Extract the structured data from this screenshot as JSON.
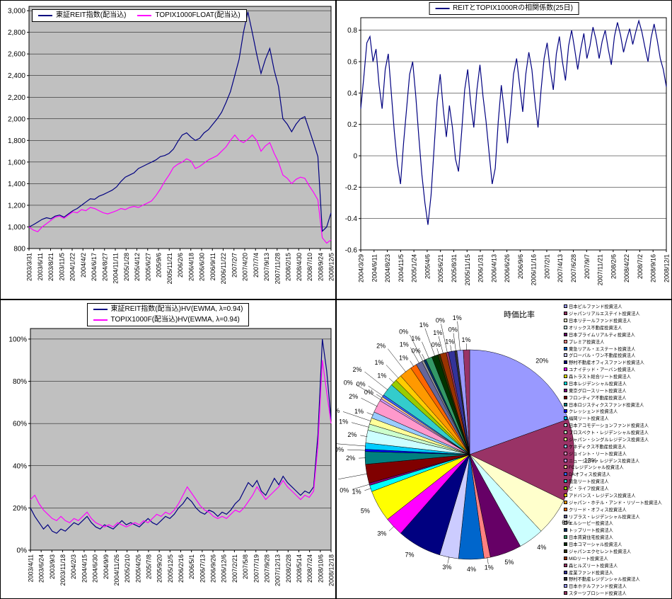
{
  "chart_data": [
    {
      "id": "price_index",
      "type": "line",
      "plot_bg": "#C0C0C0",
      "ylim": [
        800,
        3040
      ],
      "yticks": [
        {
          "v": 800,
          "label": "800"
        },
        {
          "v": 1000,
          "label": "1,000"
        },
        {
          "v": 1200,
          "label": "1,200"
        },
        {
          "v": 1400,
          "label": "1,400"
        },
        {
          "v": 1600,
          "label": "1,600"
        },
        {
          "v": 1800,
          "label": "1,800"
        },
        {
          "v": 2000,
          "label": "2,000"
        },
        {
          "v": 2200,
          "label": "2,200"
        },
        {
          "v": 2400,
          "label": "2,400"
        },
        {
          "v": 2600,
          "label": "2,600"
        },
        {
          "v": 2800,
          "label": "2,800"
        },
        {
          "v": 3000,
          "label": "3,000"
        }
      ],
      "x_labels": [
        "2003/3/31",
        "2003/6/11",
        "2003/8/21",
        "2003/11/5",
        "2004/1/22",
        "2004/4/2",
        "2004/6/17",
        "2004/8/27",
        "2004/11/11",
        "2005/1/28",
        "2005/4/12",
        "2005/6/27",
        "2005/9/6",
        "2005/11/21",
        "2006/2/6",
        "2006/4/18",
        "2006/6/30",
        "2006/9/11",
        "2006/11/22",
        "2007/2/7",
        "2007/4/20",
        "2007/7/4",
        "2007/9/13",
        "2007/11/28",
        "2008/2/15",
        "2008/4/30",
        "2008/7/10",
        "2008/9/24",
        "2008/12/5"
      ],
      "series": [
        {
          "name": "東証REIT指数(配当込)",
          "color": "#000080",
          "values": [
            1000,
            1020,
            1045,
            1070,
            1085,
            1075,
            1100,
            1110,
            1090,
            1120,
            1150,
            1170,
            1200,
            1230,
            1260,
            1255,
            1285,
            1300,
            1320,
            1340,
            1370,
            1420,
            1460,
            1480,
            1500,
            1540,
            1560,
            1580,
            1600,
            1620,
            1650,
            1660,
            1680,
            1720,
            1790,
            1850,
            1870,
            1830,
            1800,
            1820,
            1870,
            1900,
            1950,
            2000,
            2060,
            2150,
            2250,
            2400,
            2550,
            2800,
            2990,
            2800,
            2600,
            2420,
            2550,
            2650,
            2450,
            2300,
            2000,
            1950,
            1880,
            1950,
            2000,
            2020,
            1900,
            1780,
            1650,
            960,
            1000,
            1130
          ]
        },
        {
          "name": "TOPIX1000FLOAT(配当込)",
          "color": "#FF00FF",
          "values": [
            1000,
            970,
            955,
            1000,
            1030,
            1060,
            1090,
            1100,
            1080,
            1110,
            1140,
            1130,
            1160,
            1150,
            1180,
            1170,
            1150,
            1130,
            1120,
            1135,
            1150,
            1170,
            1160,
            1180,
            1190,
            1180,
            1200,
            1220,
            1240,
            1290,
            1350,
            1420,
            1480,
            1550,
            1580,
            1600,
            1630,
            1610,
            1540,
            1560,
            1590,
            1620,
            1640,
            1660,
            1700,
            1740,
            1800,
            1850,
            1800,
            1780,
            1810,
            1850,
            1800,
            1700,
            1750,
            1780,
            1680,
            1600,
            1480,
            1450,
            1400,
            1440,
            1460,
            1450,
            1380,
            1320,
            1250,
            900,
            850,
            880
          ]
        }
      ]
    },
    {
      "id": "correlation",
      "type": "line",
      "plot_bg": "#FFFFFF",
      "ylim": [
        -0.6,
        0.88
      ],
      "yticks": [
        {
          "v": -0.6,
          "label": "-0.6"
        },
        {
          "v": -0.4,
          "label": "-0.4"
        },
        {
          "v": -0.2,
          "label": "-0.2"
        },
        {
          "v": 0,
          "label": "0"
        },
        {
          "v": 0.2,
          "label": "0.2"
        },
        {
          "v": 0.4,
          "label": "0.4"
        },
        {
          "v": 0.6,
          "label": "0.6"
        },
        {
          "v": 0.8,
          "label": "0.8"
        }
      ],
      "x_labels": [
        "2004/3/29",
        "2004/6/11",
        "2004/8/23",
        "2004/11/5",
        "2005/1/24",
        "2005/4/6",
        "2005/6/21",
        "2005/8/31",
        "2005/11/15",
        "2006/1/31",
        "2006/4/13",
        "2006/6/26",
        "2006/9/6",
        "2006/11/16",
        "2007/2/1",
        "2007/4/13",
        "2007/6/28",
        "2007/9/7",
        "2007/11/21",
        "2008/2/6",
        "2008/4/22",
        "2008/7/2",
        "2008/9/16",
        "2008/12/1"
      ],
      "series": [
        {
          "name": "REITとTOPIX1000Rの相関係数(25日)",
          "color": "#000080",
          "values": [
            0.3,
            0.5,
            0.72,
            0.76,
            0.6,
            0.68,
            0.45,
            0.3,
            0.55,
            0.65,
            0.4,
            0.15,
            -0.05,
            -0.18,
            0.08,
            0.3,
            0.52,
            0.6,
            0.38,
            0.12,
            -0.12,
            -0.3,
            -0.44,
            -0.25,
            0.05,
            0.35,
            0.52,
            0.3,
            0.12,
            0.32,
            0.18,
            -0.02,
            -0.1,
            0.15,
            0.42,
            0.55,
            0.33,
            0.18,
            0.42,
            0.58,
            0.38,
            0.22,
            0.02,
            -0.18,
            -0.08,
            0.22,
            0.45,
            0.28,
            0.08,
            0.28,
            0.52,
            0.62,
            0.45,
            0.28,
            0.52,
            0.66,
            0.55,
            0.35,
            0.18,
            0.42,
            0.62,
            0.72,
            0.55,
            0.42,
            0.65,
            0.76,
            0.6,
            0.48,
            0.7,
            0.8,
            0.68,
            0.55,
            0.68,
            0.78,
            0.62,
            0.7,
            0.82,
            0.74,
            0.62,
            0.73,
            0.8,
            0.68,
            0.58,
            0.76,
            0.85,
            0.77,
            0.66,
            0.74,
            0.81,
            0.71,
            0.79,
            0.86,
            0.79,
            0.69,
            0.6,
            0.75,
            0.84,
            0.74,
            0.62,
            0.55,
            0.44
          ]
        }
      ]
    },
    {
      "id": "volatility",
      "type": "line",
      "plot_bg": "#C0C0C0",
      "ylim": [
        0,
        1.05
      ],
      "yticks": [
        {
          "v": 0,
          "label": "0%"
        },
        {
          "v": 0.2,
          "label": "20%"
        },
        {
          "v": 0.4,
          "label": "40%"
        },
        {
          "v": 0.6,
          "label": "60%"
        },
        {
          "v": 0.8,
          "label": "80%"
        },
        {
          "v": 1.0,
          "label": "100%"
        }
      ],
      "x_labels": [
        "2003/4/11",
        "2003/6/24",
        "2003/9/3",
        "2003/11/18",
        "2004/2/3",
        "2004/4/15",
        "2004/6/30",
        "2004/9/9",
        "2004/11/26",
        "2005/2/10",
        "2005/4/26",
        "2005/7/8",
        "2005/9/20",
        "2005/12/5",
        "2006/2/16",
        "2006/5/1",
        "2006/7/13",
        "2006/9/26",
        "2006/12/6",
        "2007/2/21",
        "2007/5/8",
        "2007/7/19",
        "2007/9/28",
        "2007/12/13",
        "2008/2/28",
        "2008/5/14",
        "2008/7/24",
        "2008/10/6",
        "2008/12/18"
      ],
      "series": [
        {
          "name": "東証REIT指数(配当込)HV(EWMA, λ=0.94)",
          "color": "#000080",
          "values": [
            0.2,
            0.16,
            0.13,
            0.1,
            0.12,
            0.09,
            0.08,
            0.1,
            0.09,
            0.11,
            0.13,
            0.12,
            0.14,
            0.16,
            0.13,
            0.11,
            0.1,
            0.12,
            0.11,
            0.1,
            0.12,
            0.14,
            0.12,
            0.13,
            0.12,
            0.11,
            0.13,
            0.15,
            0.13,
            0.12,
            0.14,
            0.16,
            0.15,
            0.17,
            0.2,
            0.22,
            0.25,
            0.23,
            0.2,
            0.18,
            0.17,
            0.19,
            0.18,
            0.16,
            0.18,
            0.17,
            0.19,
            0.22,
            0.24,
            0.28,
            0.32,
            0.3,
            0.33,
            0.28,
            0.26,
            0.3,
            0.34,
            0.31,
            0.35,
            0.32,
            0.3,
            0.28,
            0.26,
            0.28,
            0.27,
            0.3,
            0.55,
            1.0,
            0.85,
            0.62
          ]
        },
        {
          "name": "TOPIX1000F(配当込)HV(EWMA, λ=0.94)",
          "color": "#FF00FF",
          "values": [
            0.24,
            0.26,
            0.22,
            0.19,
            0.17,
            0.15,
            0.14,
            0.16,
            0.14,
            0.13,
            0.15,
            0.14,
            0.16,
            0.18,
            0.15,
            0.13,
            0.12,
            0.11,
            0.12,
            0.11,
            0.13,
            0.12,
            0.11,
            0.12,
            0.13,
            0.12,
            0.14,
            0.13,
            0.15,
            0.17,
            0.16,
            0.18,
            0.17,
            0.19,
            0.22,
            0.26,
            0.3,
            0.27,
            0.24,
            0.21,
            0.19,
            0.18,
            0.16,
            0.15,
            0.16,
            0.15,
            0.17,
            0.19,
            0.18,
            0.2,
            0.23,
            0.26,
            0.3,
            0.27,
            0.24,
            0.26,
            0.28,
            0.3,
            0.33,
            0.3,
            0.28,
            0.26,
            0.24,
            0.26,
            0.25,
            0.28,
            0.5,
            0.9,
            0.75,
            0.6
          ]
        }
      ]
    },
    {
      "id": "market_cap",
      "type": "pie",
      "title": "時価比率",
      "slices": [
        {
          "label": "日本ビルファンド投資法人",
          "pct": 20,
          "color": "#9999FF"
        },
        {
          "label": "ジャパンリアルエステイト投資法人",
          "pct": 13,
          "color": "#993366"
        },
        {
          "label": "日本リテールファンド投資法人",
          "pct": 6,
          "color": "#FFFFCC"
        },
        {
          "label": "オリックス不動産投資法人",
          "pct": 4,
          "color": "#CCFFFF"
        },
        {
          "label": "日本プライムリアルティ投資法人",
          "pct": 5,
          "color": "#660066"
        },
        {
          "label": "プレミア投資法人",
          "pct": 1,
          "color": "#FF8080"
        },
        {
          "label": "東急リアル・エステート投資法人",
          "pct": 4,
          "color": "#0066CC"
        },
        {
          "label": "グローバル・ワン不動産投資法人",
          "pct": 3,
          "color": "#CCCCFF"
        },
        {
          "label": "野村不動産オフィスファンド投資法人",
          "pct": 7,
          "color": "#000080"
        },
        {
          "label": "ユナイテッド・アーバン投資法人",
          "pct": 3,
          "color": "#FF00FF"
        },
        {
          "label": "森トラスト総合リート投資法人",
          "pct": 5,
          "color": "#FFFF00"
        },
        {
          "label": "日本レジデンシャル投資法人",
          "pct": 1,
          "color": "#00FFFF"
        },
        {
          "label": "東京グロースリート投資法人",
          "pct": 0,
          "color": "#800080"
        },
        {
          "label": "フロンティア不動産投資法人",
          "pct": 3,
          "color": "#800000"
        },
        {
          "label": "日本ロジスティクスファンド投資法人",
          "pct": 2,
          "color": "#008080"
        },
        {
          "label": "クレッシェンド投資法人",
          "pct": 0,
          "color": "#0000FF"
        },
        {
          "label": "福岡リート投資法人",
          "pct": 1,
          "color": "#00CCFF"
        },
        {
          "label": "日本アコモデーションファンド投資法人",
          "pct": 2,
          "color": "#CCFFFF"
        },
        {
          "label": "プロスペクト・レジデンシャル投資法人",
          "pct": 1,
          "color": "#CCFFCC"
        },
        {
          "label": "ジャパン・シングルレジデンス投資法人",
          "pct": 1,
          "color": "#FFFF99"
        },
        {
          "label": "ケネディクス不動産投資法人",
          "pct": 1,
          "color": "#99CCFF"
        },
        {
          "label": "ジョイント・リート投資法人",
          "pct": 2,
          "color": "#FF99CC"
        },
        {
          "label": "ニューシティ・レジデンス投資法人",
          "pct": 0,
          "color": "#CC99FF"
        },
        {
          "label": "FCレジデンシャル投資法人",
          "pct": 0,
          "color": "#FFCC99"
        },
        {
          "label": "DAオフィス投資法人",
          "pct": 0,
          "color": "#3366FF"
        },
        {
          "label": "阪急リート投資法人",
          "pct": 2,
          "color": "#33CCCC"
        },
        {
          "label": "ビ・ライフ投資法人",
          "pct": 1,
          "color": "#99CC00"
        },
        {
          "label": "アドバンス・レジデンス投資法人",
          "pct": 1,
          "color": "#FFCC00"
        },
        {
          "label": "ジャパン・ホテル・アンド・リゾート投資法人",
          "pct": 2,
          "color": "#FF9900"
        },
        {
          "label": "クリード・オフィス投資法人",
          "pct": 1,
          "color": "#FF6600"
        },
        {
          "label": "リプラス・レジデンシャル投資法人",
          "pct": 1,
          "color": "#666699"
        },
        {
          "label": "エルシーピー投資法人",
          "pct": 0,
          "color": "#969696"
        },
        {
          "label": "トップリート投資法人",
          "pct": 0,
          "color": "#003366"
        },
        {
          "label": "日本賃貸住宅投資法人",
          "pct": 1,
          "color": "#339966"
        },
        {
          "label": "日本コマーシャル投資法人",
          "pct": 1,
          "color": "#003300"
        },
        {
          "label": "ジャパンエクセレント投資法人",
          "pct": 0,
          "color": "#333300"
        },
        {
          "label": "MIDリート投資法人",
          "pct": 1,
          "color": "#993300"
        },
        {
          "label": "森ヒルズリート投資法人",
          "pct": 0,
          "color": "#993366"
        },
        {
          "label": "産業ファンド投資法人",
          "pct": 1,
          "color": "#333399"
        },
        {
          "label": "野村不動産レジデンシャル投資法人",
          "pct": 0,
          "color": "#333333"
        },
        {
          "label": "日本ホテルファンド投資法人",
          "pct": 1,
          "color": "#9999FF"
        },
        {
          "label": "スターツプロシード投資法人",
          "pct": 1,
          "color": "#993366"
        }
      ]
    }
  ]
}
